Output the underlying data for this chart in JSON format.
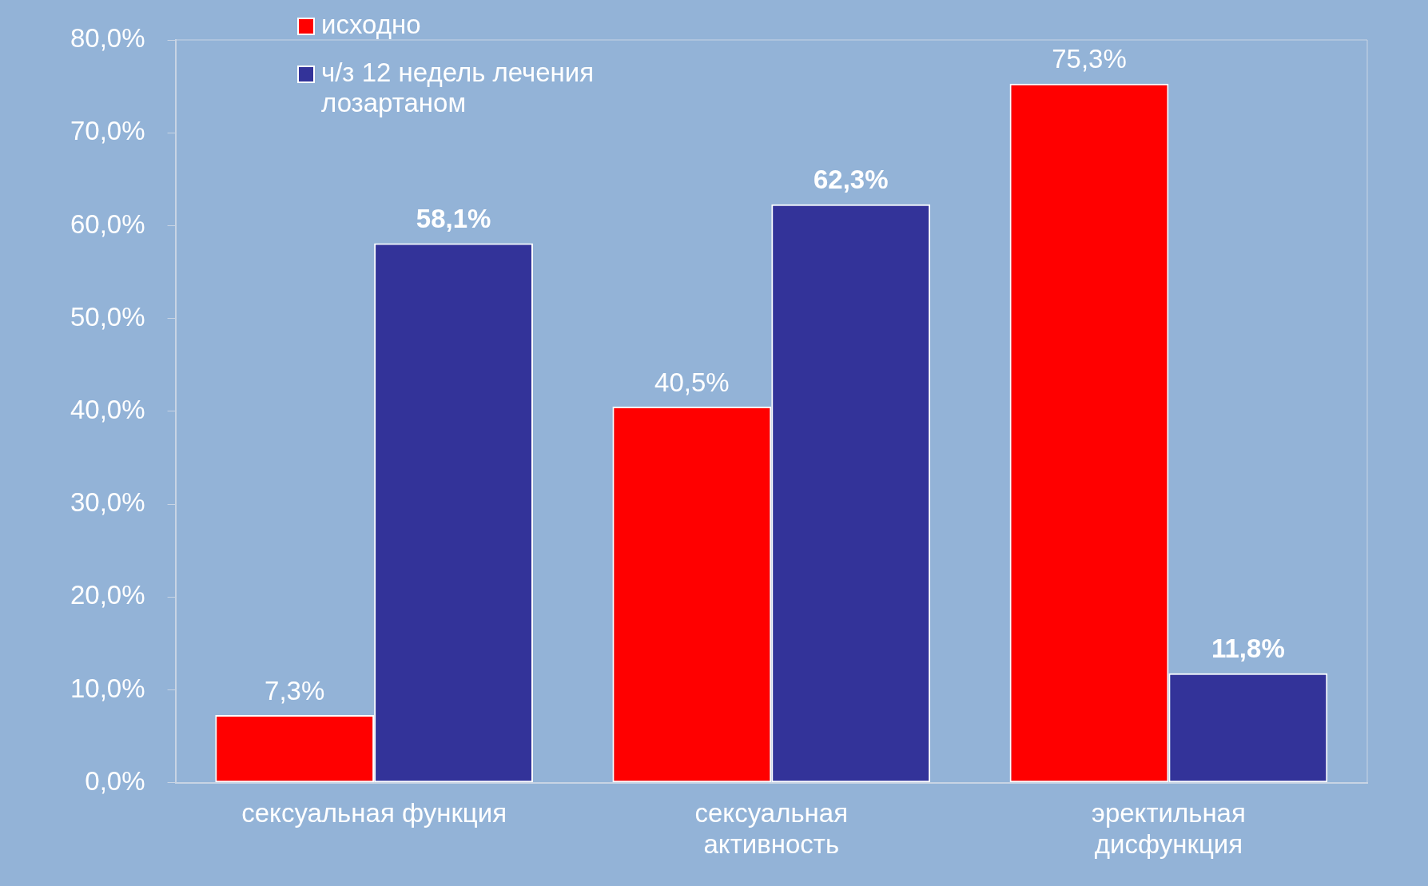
{
  "chart_data": {
    "type": "bar",
    "categories": [
      "сексуальная функция",
      "сексуальная\nактивность",
      "эректильная\nдисфункция"
    ],
    "series": [
      {
        "name": "исходно",
        "color": "#ff0000",
        "values": [
          7.3,
          40.5,
          75.3
        ],
        "value_labels": [
          "7,3%",
          "40,5%",
          "75,3%"
        ]
      },
      {
        "name": "ч/з 12 недель лечения лозартаном",
        "color": "#333399",
        "values": [
          58.1,
          62.3,
          11.8
        ],
        "value_labels": [
          "58,1%",
          "62,3%",
          "11,8%"
        ]
      }
    ],
    "ylim": [
      0,
      80
    ],
    "yticks": [
      {
        "value": 0,
        "label": "0,0%"
      },
      {
        "value": 10,
        "label": "10,0%"
      },
      {
        "value": 20,
        "label": "20,0%"
      },
      {
        "value": 30,
        "label": "30,0%"
      },
      {
        "value": 40,
        "label": "40,0%"
      },
      {
        "value": 50,
        "label": "50,0%"
      },
      {
        "value": 60,
        "label": "60,0%"
      },
      {
        "value": 70,
        "label": "70,0%"
      },
      {
        "value": 80,
        "label": "80,0%"
      }
    ],
    "grid": false,
    "legend": "top left"
  }
}
